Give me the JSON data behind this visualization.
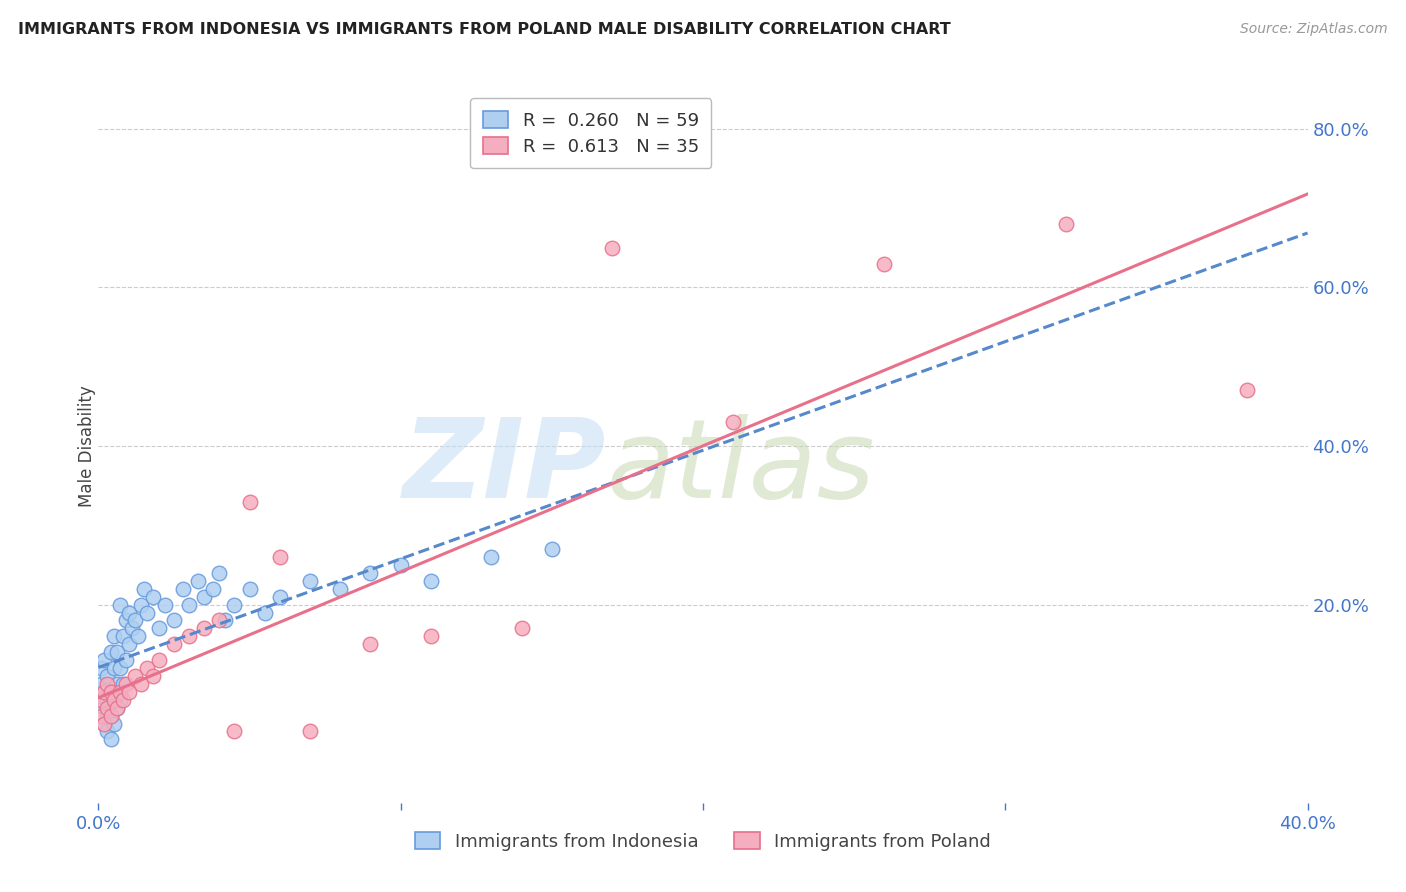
{
  "title": "IMMIGRANTS FROM INDONESIA VS IMMIGRANTS FROM POLAND MALE DISABILITY CORRELATION CHART",
  "source": "Source: ZipAtlas.com",
  "ylabel": "Male Disability",
  "xlim": [
    0.0,
    0.4
  ],
  "ylim": [
    -0.05,
    0.85
  ],
  "yticks_right": [
    0.2,
    0.4,
    0.6,
    0.8
  ],
  "yticks_grid": [
    0.2,
    0.4,
    0.6,
    0.8
  ],
  "xtick_labels": [
    "0.0%",
    "",
    "",
    "",
    "40.0%"
  ],
  "bg_color": "#ffffff",
  "grid_color": "#cccccc",
  "indonesia_color": "#aecff0",
  "indonesia_edge_color": "#6699dd",
  "poland_color": "#f5aec0",
  "poland_edge_color": "#e8708a",
  "indonesia_line_color": "#5588cc",
  "poland_line_color": "#e8708a",
  "indonesia_R": 0.26,
  "indonesia_N": 59,
  "poland_R": 0.613,
  "poland_N": 35,
  "tick_label_color": "#4477cc",
  "watermark_zip_color": "#c8dff5",
  "watermark_atlas_color": "#c8d8b0",
  "indo_x": [
    0.001,
    0.001,
    0.001,
    0.002,
    0.002,
    0.002,
    0.002,
    0.003,
    0.003,
    0.003,
    0.003,
    0.004,
    0.004,
    0.004,
    0.004,
    0.005,
    0.005,
    0.005,
    0.005,
    0.006,
    0.006,
    0.006,
    0.007,
    0.007,
    0.007,
    0.008,
    0.008,
    0.009,
    0.009,
    0.01,
    0.01,
    0.011,
    0.012,
    0.013,
    0.014,
    0.015,
    0.016,
    0.018,
    0.02,
    0.022,
    0.025,
    0.028,
    0.03,
    0.033,
    0.035,
    0.038,
    0.04,
    0.042,
    0.045,
    0.05,
    0.055,
    0.06,
    0.07,
    0.08,
    0.09,
    0.1,
    0.11,
    0.13,
    0.15
  ],
  "indo_y": [
    0.08,
    0.1,
    0.12,
    0.05,
    0.07,
    0.09,
    0.13,
    0.04,
    0.06,
    0.08,
    0.11,
    0.03,
    0.06,
    0.09,
    0.14,
    0.05,
    0.08,
    0.12,
    0.16,
    0.07,
    0.1,
    0.14,
    0.08,
    0.12,
    0.2,
    0.1,
    0.16,
    0.13,
    0.18,
    0.15,
    0.19,
    0.17,
    0.18,
    0.16,
    0.2,
    0.22,
    0.19,
    0.21,
    0.17,
    0.2,
    0.18,
    0.22,
    0.2,
    0.23,
    0.21,
    0.22,
    0.24,
    0.18,
    0.2,
    0.22,
    0.19,
    0.21,
    0.23,
    0.22,
    0.24,
    0.25,
    0.23,
    0.26,
    0.27
  ],
  "pol_x": [
    0.001,
    0.001,
    0.002,
    0.002,
    0.003,
    0.003,
    0.004,
    0.004,
    0.005,
    0.006,
    0.007,
    0.008,
    0.009,
    0.01,
    0.012,
    0.014,
    0.016,
    0.018,
    0.02,
    0.025,
    0.03,
    0.035,
    0.04,
    0.045,
    0.05,
    0.06,
    0.07,
    0.09,
    0.11,
    0.14,
    0.17,
    0.21,
    0.26,
    0.32,
    0.38
  ],
  "pol_y": [
    0.06,
    0.08,
    0.05,
    0.09,
    0.07,
    0.1,
    0.06,
    0.09,
    0.08,
    0.07,
    0.09,
    0.08,
    0.1,
    0.09,
    0.11,
    0.1,
    0.12,
    0.11,
    0.13,
    0.15,
    0.16,
    0.17,
    0.18,
    0.04,
    0.33,
    0.26,
    0.04,
    0.15,
    0.16,
    0.17,
    0.65,
    0.43,
    0.63,
    0.68,
    0.47
  ],
  "indo_line_start_x": 0.0,
  "indo_line_end_x": 0.4,
  "pol_line_start_x": 0.0,
  "pol_line_end_x": 0.4
}
